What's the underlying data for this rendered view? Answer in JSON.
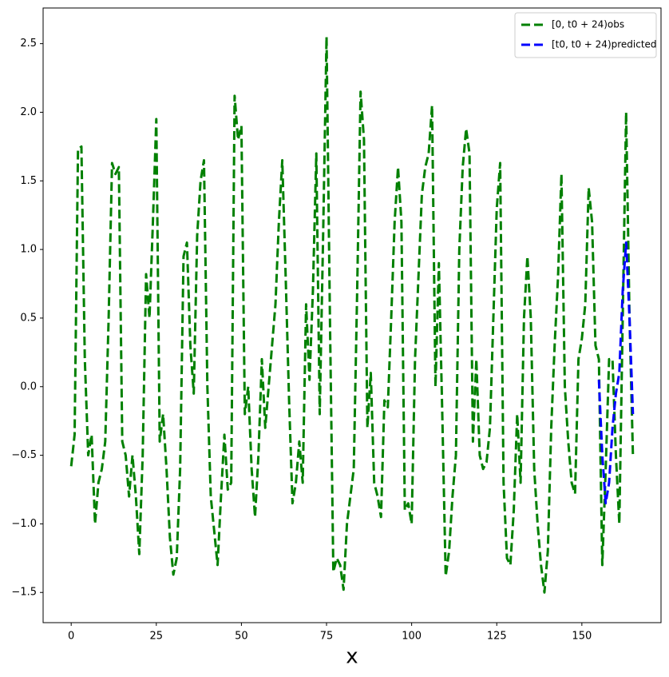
{
  "chart_data": {
    "type": "line",
    "x_label": "x",
    "x": [
      0,
      1,
      2,
      3,
      4,
      5,
      6,
      7,
      8,
      9,
      10,
      11,
      12,
      13,
      14,
      15,
      16,
      17,
      18,
      19,
      20,
      21,
      22,
      23,
      24,
      25,
      26,
      27,
      28,
      29,
      30,
      31,
      32,
      33,
      34,
      35,
      36,
      37,
      38,
      39,
      40,
      41,
      42,
      43,
      44,
      45,
      46,
      47,
      48,
      49,
      50,
      51,
      52,
      53,
      54,
      55,
      56,
      57,
      58,
      59,
      60,
      61,
      62,
      63,
      64,
      65,
      66,
      67,
      68,
      69,
      70,
      71,
      72,
      73,
      74,
      75,
      76,
      77,
      78,
      79,
      80,
      81,
      82,
      83,
      84,
      85,
      86,
      87,
      88,
      89,
      90,
      91,
      92,
      93,
      94,
      95,
      96,
      97,
      98,
      99,
      100,
      101,
      102,
      103,
      104,
      105,
      106,
      107,
      108,
      109,
      110,
      111,
      112,
      113,
      114,
      115,
      116,
      117,
      118,
      119,
      120,
      121,
      122,
      123,
      124,
      125,
      126,
      127,
      128,
      129,
      130,
      131,
      132,
      133,
      134,
      135,
      136,
      137,
      138,
      139,
      140,
      141,
      142,
      143,
      144,
      145,
      146,
      147,
      148,
      149,
      150,
      151,
      152,
      153,
      154,
      155,
      156,
      157,
      158,
      159,
      160,
      161,
      162,
      163,
      164,
      165
    ],
    "series": [
      {
        "name": "[0, t0 + 24)obs",
        "color": "#008000",
        "values": [
          -0.58,
          -0.35,
          1.73,
          1.75,
          0.2,
          -0.5,
          -0.35,
          -1.0,
          -0.7,
          -0.6,
          -0.4,
          0.5,
          1.63,
          1.55,
          1.6,
          -0.4,
          -0.5,
          -0.8,
          -0.5,
          -0.8,
          -1.22,
          -0.5,
          0.82,
          0.5,
          1.2,
          1.95,
          -0.4,
          -0.2,
          -0.6,
          -1.1,
          -1.37,
          -1.25,
          -0.6,
          0.95,
          1.05,
          0.3,
          -0.05,
          1.1,
          1.5,
          1.65,
          0.0,
          -0.8,
          -1.05,
          -1.3,
          -0.8,
          -0.35,
          -0.75,
          -0.7,
          2.12,
          1.8,
          1.9,
          -0.2,
          0.0,
          -0.6,
          -0.95,
          -0.5,
          0.2,
          -0.3,
          0.0,
          0.3,
          0.6,
          1.2,
          1.65,
          0.8,
          -0.1,
          -0.85,
          -0.7,
          -0.4,
          -0.7,
          0.6,
          0.05,
          0.7,
          1.7,
          -0.2,
          1.1,
          2.55,
          0.5,
          -1.35,
          -1.25,
          -1.3,
          -1.48,
          -1.0,
          -0.8,
          -0.6,
          0.7,
          2.15,
          1.8,
          -0.3,
          0.1,
          -0.7,
          -0.8,
          -0.95,
          -0.1,
          -0.15,
          0.5,
          1.2,
          1.6,
          1.2,
          -0.9,
          -0.85,
          -1.0,
          0.2,
          0.8,
          1.4,
          1.6,
          1.7,
          2.05,
          0.0,
          0.9,
          -0.2,
          -1.38,
          -1.2,
          -0.8,
          -0.5,
          1.0,
          1.6,
          1.88,
          1.7,
          -0.4,
          0.2,
          -0.5,
          -0.6,
          -0.55,
          -0.3,
          0.5,
          1.3,
          1.63,
          -0.7,
          -1.25,
          -1.3,
          -0.9,
          -0.2,
          -0.7,
          0.5,
          0.95,
          0.5,
          -0.6,
          -1.0,
          -1.3,
          -1.5,
          -1.2,
          -0.3,
          0.3,
          0.8,
          1.55,
          0.0,
          -0.4,
          -0.7,
          -0.78,
          0.2,
          0.35,
          0.6,
          1.45,
          1.2,
          0.3,
          0.2,
          -1.3,
          -0.6,
          0.2,
          0.2,
          -0.5,
          -1.0,
          0.5,
          2.0,
          0.5,
          -0.5
        ]
      },
      {
        "name": "[t0, t0 + 24)predicted",
        "color": "#0000ff",
        "x": [
          155,
          156,
          157,
          158,
          159,
          160,
          161,
          162,
          163,
          164,
          165
        ],
        "values": [
          0.05,
          -0.5,
          -0.85,
          -0.7,
          -0.3,
          -0.05,
          0.1,
          0.7,
          1.05,
          0.5,
          -0.2
        ]
      }
    ],
    "xlim": [
      -8.25,
      173.25
    ],
    "xticks": [
      0,
      25,
      50,
      75,
      100,
      125,
      150
    ],
    "ylim": [
      -1.72,
      2.76
    ],
    "yticks": [
      {
        "value": -1.5,
        "label": "−1.5"
      },
      {
        "value": -1.0,
        "label": "−1.0"
      },
      {
        "value": -0.5,
        "label": "−0.5"
      },
      {
        "value": 0.0,
        "label": "0.0"
      },
      0.5,
      {
        "value": 1.0,
        "label": "1.0"
      },
      1.5,
      {
        "value": 2.0,
        "label": "2.0"
      },
      2.5
    ],
    "line_style": "dashed",
    "legend": "upper right"
  }
}
